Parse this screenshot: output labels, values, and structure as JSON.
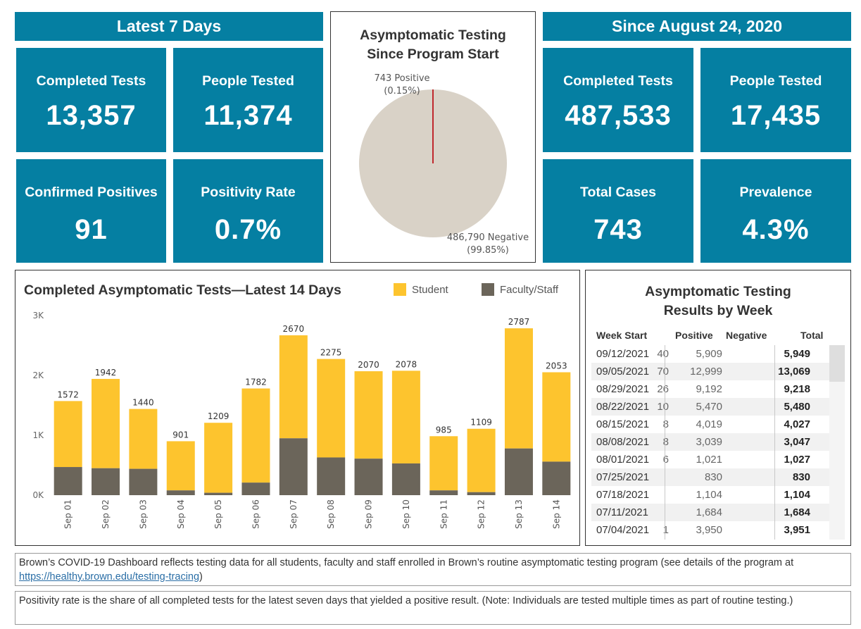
{
  "left_section": {
    "header": "Latest 7 Days",
    "tiles": [
      {
        "label": "Completed Tests",
        "value": "13,357"
      },
      {
        "label": "People Tested",
        "value": "11,374"
      },
      {
        "label": "Confirmed Positives",
        "value": "91"
      },
      {
        "label": "Positivity Rate",
        "value": "0.7%"
      }
    ]
  },
  "right_section": {
    "header": "Since August 24, 2020",
    "tiles": [
      {
        "label": "Completed Tests",
        "value": "487,533"
      },
      {
        "label": "People Tested",
        "value": "17,435"
      },
      {
        "label": "Total Cases",
        "value": "743"
      },
      {
        "label": "Prevalence",
        "value": "4.3%"
      }
    ]
  },
  "pie": {
    "title_line1": "Asymptomatic Testing",
    "title_line2": "Since Program Start",
    "positive_label": "743  Positive",
    "positive_pct": "(0.15%)",
    "negative_label": "486,790  Negative",
    "negative_pct": "(99.85%)",
    "positive_value": 743,
    "negative_value": 486790,
    "colors": {
      "negative": "#d9d2c7",
      "positive": "#c0282d"
    }
  },
  "chart_data": {
    "type": "bar",
    "title": "Completed Asymptomatic Tests—Latest 14 Days",
    "xlabel": "",
    "ylabel": "",
    "categories": [
      "Sep 01",
      "Sep 02",
      "Sep 03",
      "Sep 04",
      "Sep 05",
      "Sep 06",
      "Sep 07",
      "Sep 08",
      "Sep 09",
      "Sep 10",
      "Sep 11",
      "Sep 12",
      "Sep 13",
      "Sep 14"
    ],
    "totals": [
      1572,
      1942,
      1440,
      901,
      1209,
      1782,
      2670,
      2275,
      2070,
      2078,
      985,
      1109,
      2787,
      2053
    ],
    "series": [
      {
        "name": "Faculty/Staff",
        "color": "#6b655a",
        "values": [
          470,
          450,
          440,
          80,
          40,
          210,
          950,
          630,
          610,
          530,
          80,
          50,
          780,
          560
        ]
      },
      {
        "name": "Student",
        "color": "#fdc42e",
        "values": [
          1102,
          1492,
          1000,
          821,
          1169,
          1572,
          1720,
          1645,
          1460,
          1548,
          905,
          1059,
          2007,
          1493
        ]
      }
    ],
    "stacked": true,
    "ylim": [
      0,
      3000
    ],
    "yticks": [
      {
        "value": 0,
        "label": "0K"
      },
      {
        "value": 1000,
        "label": "1K"
      },
      {
        "value": 2000,
        "label": "2K"
      },
      {
        "value": 3000,
        "label": "3K"
      }
    ],
    "legend": [
      "Student",
      "Faculty/Staff"
    ],
    "legend_position": "top-right",
    "grid": false
  },
  "weekly_table": {
    "title_line1": "Asymptomatic Testing",
    "title_line2": "Results by Week",
    "headers": {
      "week": "Week Start",
      "positive": "Positive",
      "negative": "Negative",
      "total": "Total"
    },
    "rows": [
      {
        "week": "09/12/2021",
        "positive": "40",
        "negative": "5,909",
        "total": "5,949"
      },
      {
        "week": "09/05/2021",
        "positive": "70",
        "negative": "12,999",
        "total": "13,069"
      },
      {
        "week": "08/29/2021",
        "positive": "26",
        "negative": "9,192",
        "total": "9,218"
      },
      {
        "week": "08/22/2021",
        "positive": "10",
        "negative": "5,470",
        "total": "5,480"
      },
      {
        "week": "08/15/2021",
        "positive": "8",
        "negative": "4,019",
        "total": "4,027"
      },
      {
        "week": "08/08/2021",
        "positive": "8",
        "negative": "3,039",
        "total": "3,047"
      },
      {
        "week": "08/01/2021",
        "positive": "6",
        "negative": "1,021",
        "total": "1,027"
      },
      {
        "week": "07/25/2021",
        "positive": "",
        "negative": "830",
        "total": "830"
      },
      {
        "week": "07/18/2021",
        "positive": "",
        "negative": "1,104",
        "total": "1,104"
      },
      {
        "week": "07/11/2021",
        "positive": "",
        "negative": "1,684",
        "total": "1,684"
      },
      {
        "week": "07/04/2021",
        "positive": "1",
        "negative": "3,950",
        "total": "3,951"
      }
    ]
  },
  "notes": {
    "note1_text": "Brown’s COVID-19 Dashboard reflects testing data for all students, faculty and staff enrolled in Brown’s routine asymptomatic testing program (see details of the program at ",
    "note1_link": "https://healthy.brown.edu/testing-tracing",
    "note1_end": ")",
    "note2_text": "Positivity rate is the share of all completed tests for the latest seven days that yielded a positive result. (Note: Individuals are tested multiple times as part of routine testing.)"
  }
}
